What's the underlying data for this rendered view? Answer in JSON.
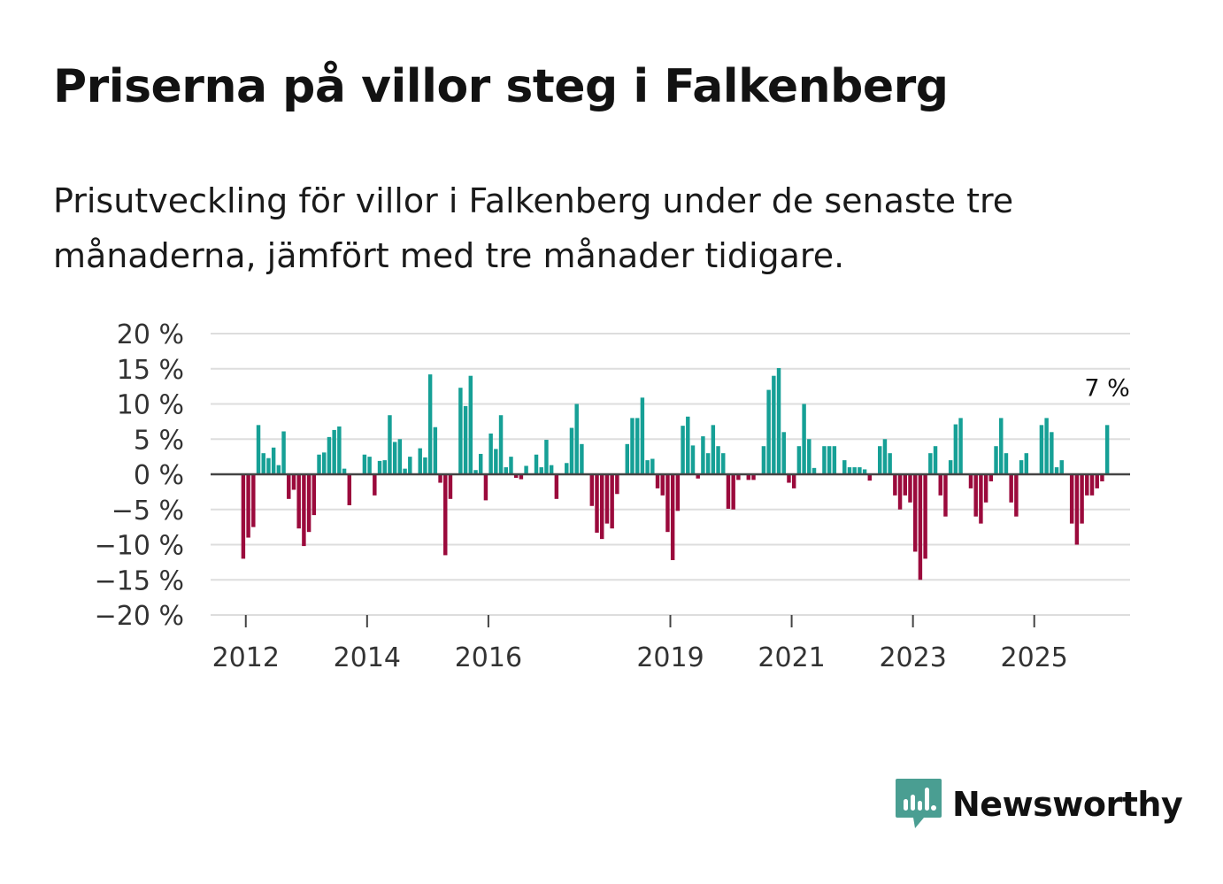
{
  "title": "Priserna på villor steg i Falkenberg",
  "subtitle": "Prisutveckling för villor i Falkenberg under de senaste tre månaderna, jämfört med tre månader tidigare.",
  "brand": {
    "name": "Newsworthy",
    "icon": "newsworthy-logo-icon",
    "color": "#4a9e92"
  },
  "colors": {
    "positive": "#16a096",
    "negative": "#9b0a3c",
    "grid": "#dddddd",
    "zero_line": "#444444",
    "text": "#333333"
  },
  "chart_data": {
    "type": "bar",
    "x_start": 2011.875,
    "x_step": 0.0833,
    "xlim": [
      2011.42,
      2026.58
    ],
    "ylim": [
      -20,
      20
    ],
    "y_ticks": [
      20,
      15,
      10,
      5,
      0,
      -5,
      -10,
      -15,
      -20
    ],
    "y_tick_labels": [
      "20 %",
      "15 %",
      "10 %",
      "5 %",
      "0 %",
      "−5 %",
      "−10 %",
      "−15 %",
      "−20 %"
    ],
    "x_ticks": [
      2012,
      2014,
      2016,
      2019,
      2021,
      2023,
      2025
    ],
    "x_tick_labels": [
      "2012",
      "2014",
      "2016",
      "2019",
      "2021",
      "2023",
      "2025"
    ],
    "values": [
      0,
      -12,
      -9,
      -7.5,
      7,
      3,
      2.3,
      3.8,
      1.3,
      6.1,
      -3.5,
      -2.2,
      -7.7,
      -10.2,
      -8.2,
      -5.8,
      2.8,
      3.1,
      5.3,
      6.3,
      6.8,
      0.8,
      -4.4,
      0,
      0,
      2.8,
      2.5,
      -3,
      1.9,
      2,
      8.4,
      4.6,
      5,
      0.8,
      2.5,
      0,
      3.7,
      2.4,
      14.2,
      6.7,
      -1.2,
      -11.5,
      -3.5,
      0,
      12.3,
      9.7,
      14,
      0.6,
      2.9,
      -3.7,
      5.8,
      3.6,
      8.4,
      1,
      2.5,
      -0.5,
      -0.7,
      1.2,
      0,
      2.8,
      1,
      4.9,
      1.3,
      -3.5,
      0,
      1.6,
      6.6,
      10,
      4.3,
      0,
      -4.5,
      -8.3,
      -9.2,
      -7,
      -7.7,
      -2.8,
      0,
      4.3,
      8,
      8,
      10.9,
      2,
      2.2,
      -2,
      -3,
      -8.2,
      -12.2,
      -5.2,
      6.9,
      8.2,
      4.1,
      -0.6,
      5.4,
      3,
      7,
      4,
      3,
      -4.9,
      -5,
      -0.8,
      0,
      -0.8,
      -0.8,
      0,
      4,
      12,
      14,
      15.1,
      6,
      -1.2,
      -2,
      4,
      10,
      5,
      0.9,
      0,
      4,
      4,
      4,
      0,
      2,
      1,
      1,
      1,
      0.7,
      -0.9,
      0,
      4,
      5,
      3,
      -3,
      -5,
      -3,
      -4,
      -11,
      -15,
      -12,
      3,
      4,
      -3,
      -6,
      2,
      7.1,
      8,
      0,
      -2,
      -6,
      -7,
      -4,
      -1,
      4,
      8,
      3,
      -4,
      -6,
      2,
      3,
      0,
      0,
      7,
      8,
      6,
      1,
      2,
      0,
      -7,
      -10,
      -7,
      -3,
      -3,
      -2,
      -1,
      7
    ],
    "annotation": {
      "label": "7 %",
      "value": 7
    }
  }
}
